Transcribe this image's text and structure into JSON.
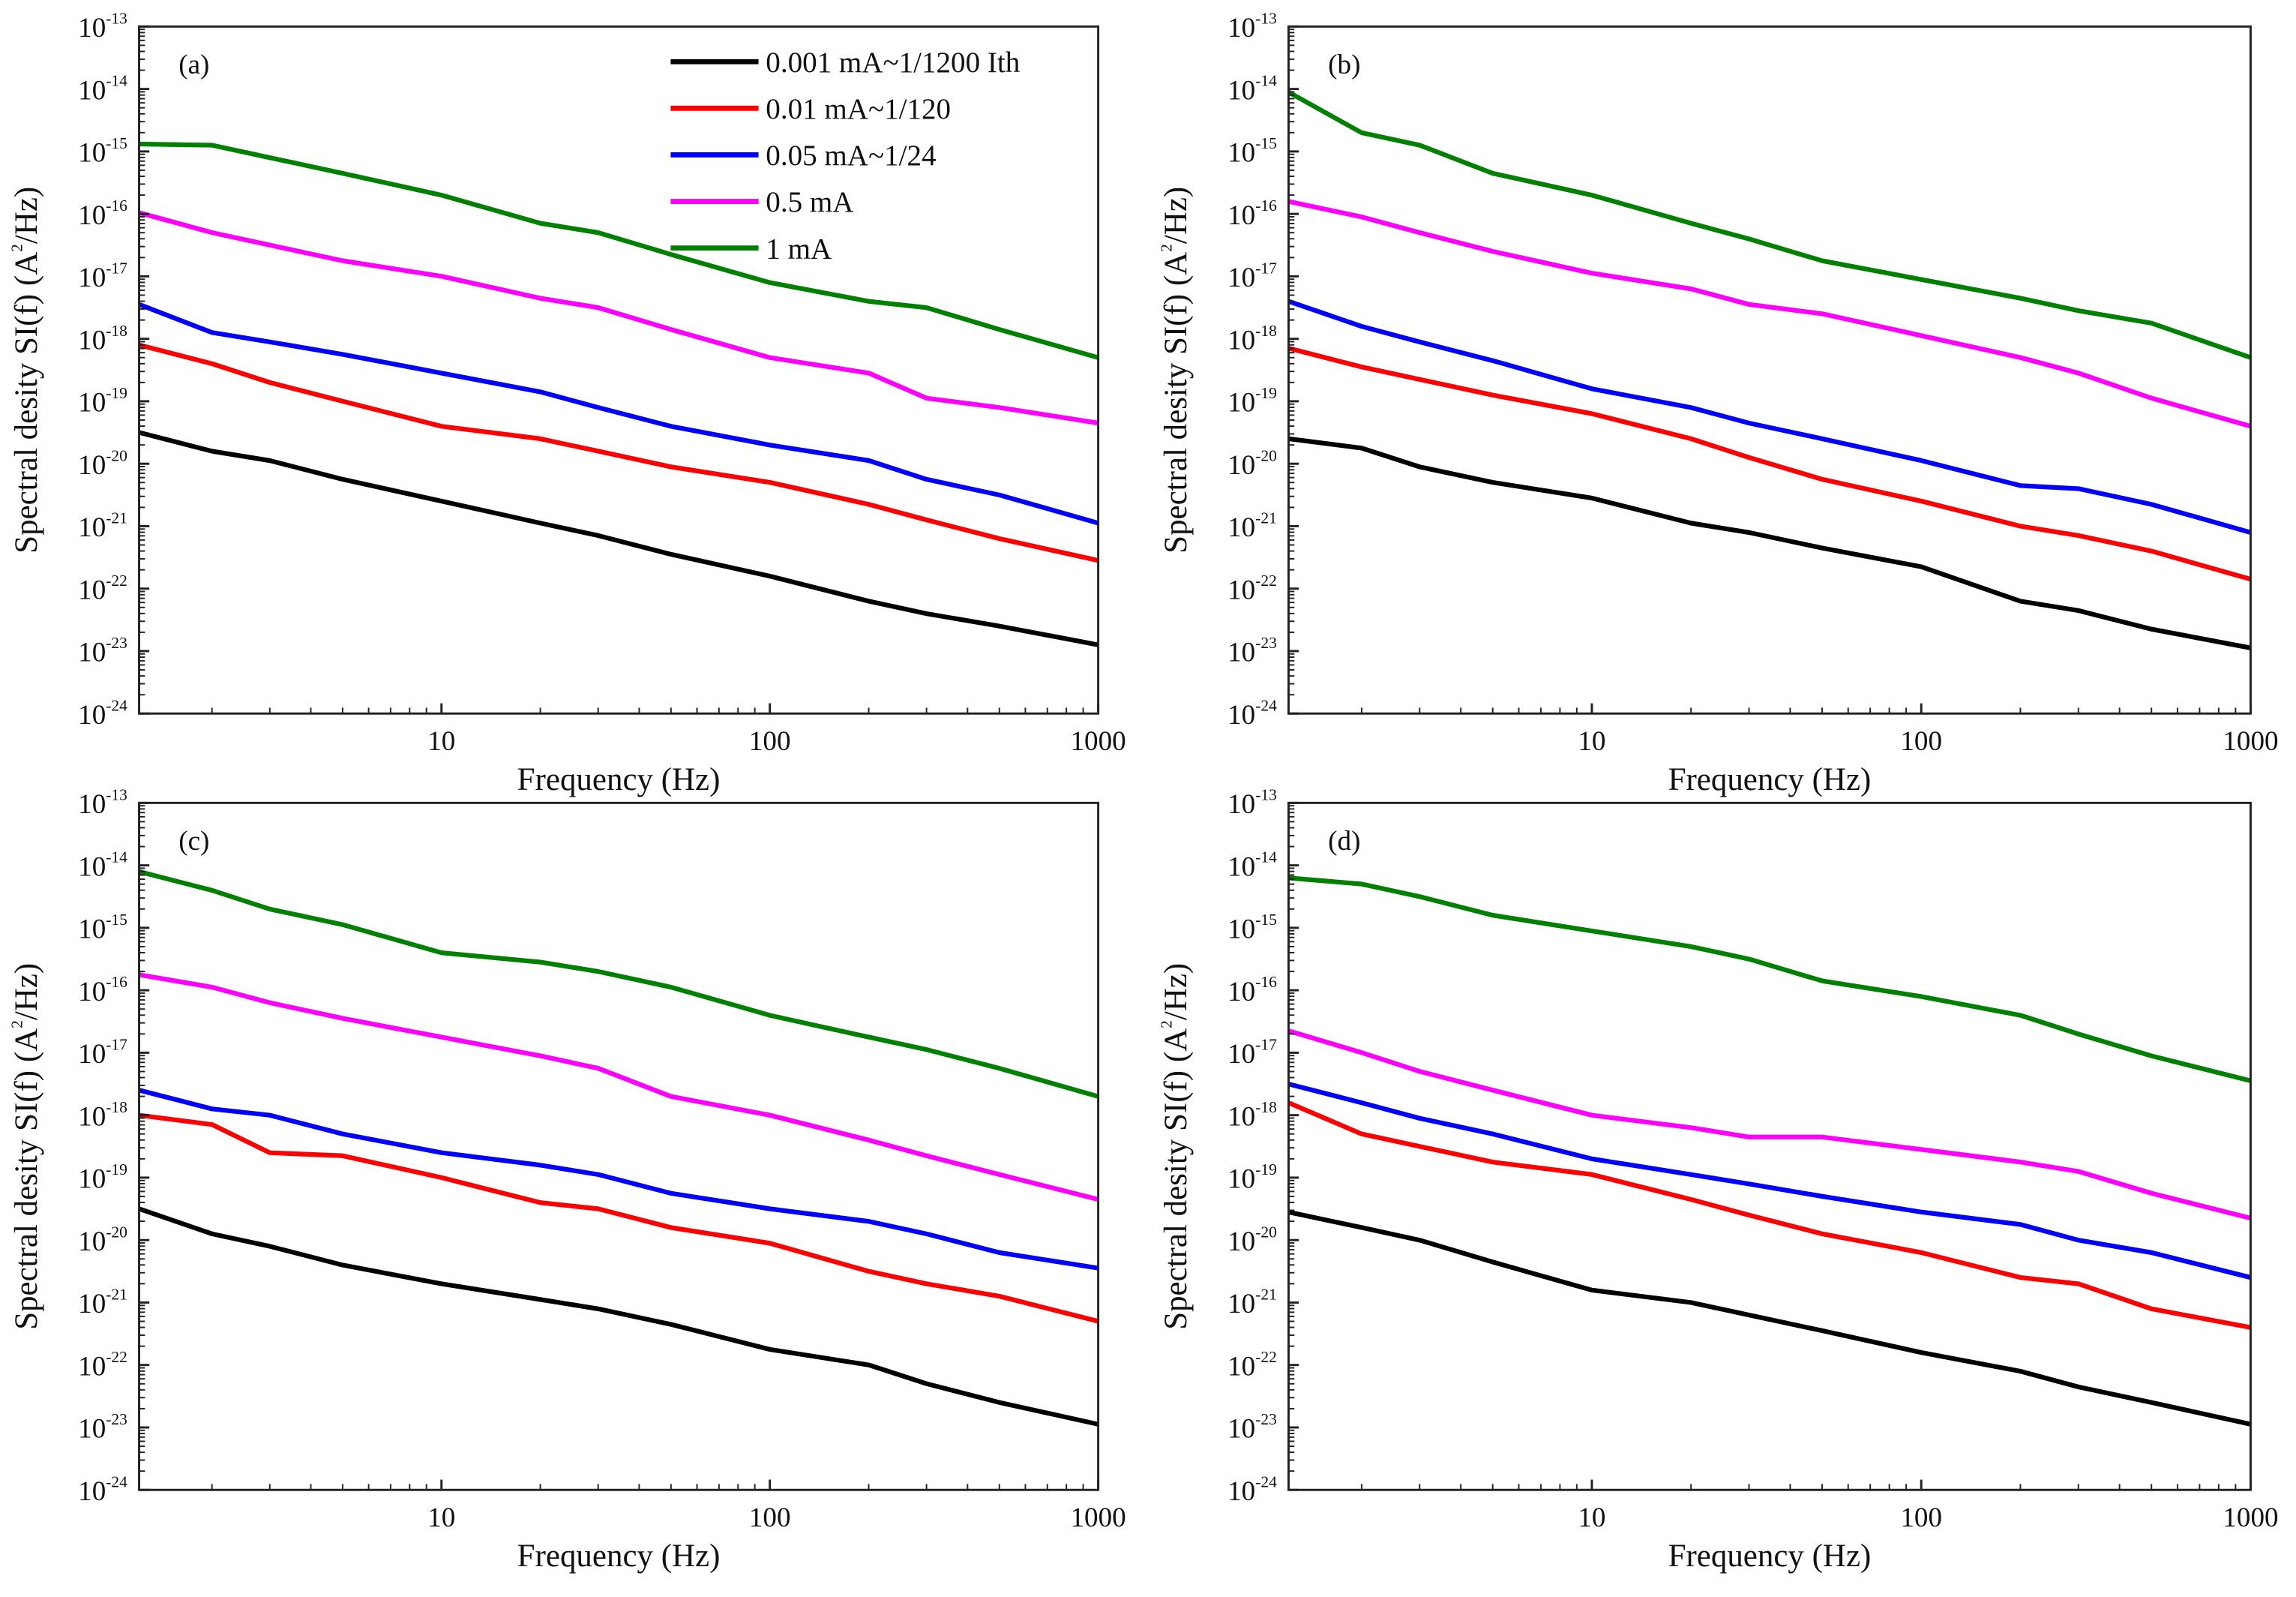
{
  "chart_data": {
    "type": "line",
    "layout": "2x2 grid of log-log panels",
    "legend": {
      "placement": "top-right of panel (a)",
      "entries": [
        {
          "label": "0.001 mA~1/1200 Ith",
          "color": "#000000"
        },
        {
          "label": "0.01 mA~1/120",
          "color": "#ff0000"
        },
        {
          "label": "0.05 mA~1/24",
          "color": "#0000ff"
        },
        {
          "label": "0.5 mA",
          "color": "#ff00ff"
        },
        {
          "label": "1 mA",
          "color": "#008000"
        }
      ]
    },
    "xlabel": "Frequency (Hz)",
    "ylabel_main": "Spectral desity SI(f) (A",
    "ylabel_sup": "2",
    "ylabel_tail": "/Hz)",
    "xscale": "log",
    "yscale": "log",
    "xlim": [
      1.2,
      1000
    ],
    "ylim_log10": [
      -24,
      -13
    ],
    "x_ticks": [
      "10",
      "100",
      "1000"
    ],
    "x_tick_values": [
      10,
      100,
      1000
    ],
    "y_tick_base": "10",
    "y_tick_exponents": [
      "-13",
      "-14",
      "-15",
      "-16",
      "-17",
      "-18",
      "-19",
      "-20",
      "-21",
      "-22",
      "-23",
      "-24"
    ],
    "y_note": "series y values are given as log10(SI) in A^2/Hz",
    "x": [
      1.2,
      2,
      3,
      5,
      10,
      20,
      30,
      50,
      100,
      200,
      300,
      500,
      1000
    ],
    "panels": [
      {
        "label": "(a)",
        "series": [
          {
            "name": "0.001 mA~1/1200 Ith",
            "y_log10": [
              -19.5,
              -19.8,
              -19.95,
              -20.25,
              -20.6,
              -20.95,
              -21.15,
              -21.45,
              -21.8,
              -22.2,
              -22.4,
              -22.6,
              -22.9
            ]
          },
          {
            "name": "0.01 mA~1/120",
            "y_log10": [
              -18.1,
              -18.4,
              -18.7,
              -19.0,
              -19.4,
              -19.6,
              -19.8,
              -20.05,
              -20.3,
              -20.65,
              -20.9,
              -21.2,
              -21.55
            ]
          },
          {
            "name": "0.05 mA~1/24",
            "y_log10": [
              -17.45,
              -17.9,
              -18.05,
              -18.25,
              -18.55,
              -18.85,
              -19.1,
              -19.4,
              -19.7,
              -19.95,
              -20.25,
              -20.5,
              -20.95
            ]
          },
          {
            "name": "0.5 mA",
            "y_log10": [
              -15.98,
              -16.3,
              -16.5,
              -16.75,
              -17.0,
              -17.35,
              -17.5,
              -17.85,
              -18.3,
              -18.55,
              -18.95,
              -19.1,
              -19.35
            ]
          },
          {
            "name": "1 mA",
            "y_log10": [
              -14.88,
              -14.9,
              -15.1,
              -15.35,
              -15.7,
              -16.15,
              -16.3,
              -16.65,
              -17.1,
              -17.4,
              -17.5,
              -17.85,
              -18.3
            ]
          }
        ]
      },
      {
        "label": "(b)",
        "series": [
          {
            "name": "0.001 mA~1/1200 Ith",
            "y_log10": [
              -19.6,
              -19.75,
              -20.05,
              -20.3,
              -20.55,
              -20.95,
              -21.1,
              -21.35,
              -21.65,
              -22.2,
              -22.35,
              -22.65,
              -22.95
            ]
          },
          {
            "name": "0.01 mA~1/120",
            "y_log10": [
              -18.15,
              -18.45,
              -18.65,
              -18.9,
              -19.2,
              -19.6,
              -19.9,
              -20.25,
              -20.6,
              -21.0,
              -21.15,
              -21.4,
              -21.85
            ]
          },
          {
            "name": "0.05 mA~1/24",
            "y_log10": [
              -17.4,
              -17.8,
              -18.05,
              -18.35,
              -18.8,
              -19.1,
              -19.35,
              -19.6,
              -19.95,
              -20.35,
              -20.4,
              -20.65,
              -21.1
            ]
          },
          {
            "name": "0.5 mA",
            "y_log10": [
              -15.8,
              -16.05,
              -16.3,
              -16.6,
              -16.95,
              -17.2,
              -17.45,
              -17.6,
              -17.95,
              -18.3,
              -18.55,
              -18.95,
              -19.4
            ]
          },
          {
            "name": "1 mA",
            "y_log10": [
              -14.05,
              -14.7,
              -14.9,
              -15.35,
              -15.7,
              -16.15,
              -16.4,
              -16.75,
              -17.05,
              -17.35,
              -17.55,
              -17.75,
              -18.3
            ]
          }
        ]
      },
      {
        "label": "(c)",
        "series": [
          {
            "name": "0.001 mA~1/1200 Ith",
            "y_log10": [
              -19.5,
              -19.9,
              -20.1,
              -20.4,
              -20.7,
              -20.95,
              -21.1,
              -21.35,
              -21.75,
              -22.0,
              -22.3,
              -22.6,
              -22.95
            ]
          },
          {
            "name": "0.01 mA~1/120",
            "y_log10": [
              -18.0,
              -18.15,
              -18.6,
              -18.65,
              -19.0,
              -19.4,
              -19.5,
              -19.8,
              -20.05,
              -20.5,
              -20.7,
              -20.9,
              -21.3
            ]
          },
          {
            "name": "0.05 mA~1/24",
            "y_log10": [
              -17.6,
              -17.9,
              -18.0,
              -18.3,
              -18.6,
              -18.8,
              -18.95,
              -19.25,
              -19.5,
              -19.7,
              -19.9,
              -20.2,
              -20.45
            ]
          },
          {
            "name": "0.5 mA",
            "y_log10": [
              -15.75,
              -15.95,
              -16.2,
              -16.45,
              -16.75,
              -17.05,
              -17.25,
              -17.7,
              -18.0,
              -18.4,
              -18.65,
              -18.95,
              -19.35
            ]
          },
          {
            "name": "1 mA",
            "y_log10": [
              -14.1,
              -14.4,
              -14.7,
              -14.95,
              -15.4,
              -15.55,
              -15.7,
              -15.95,
              -16.4,
              -16.75,
              -16.95,
              -17.25,
              -17.7
            ]
          }
        ]
      },
      {
        "label": "(d)",
        "series": [
          {
            "name": "0.001 mA~1/1200 Ith",
            "y_log10": [
              -19.55,
              -19.8,
              -20.0,
              -20.35,
              -20.8,
              -21.0,
              -21.2,
              -21.45,
              -21.8,
              -22.1,
              -22.35,
              -22.6,
              -22.95
            ]
          },
          {
            "name": "0.01 mA~1/120",
            "y_log10": [
              -17.8,
              -18.3,
              -18.5,
              -18.75,
              -18.95,
              -19.35,
              -19.6,
              -19.9,
              -20.2,
              -20.6,
              -20.7,
              -21.1,
              -21.4
            ]
          },
          {
            "name": "0.05 mA~1/24",
            "y_log10": [
              -17.5,
              -17.8,
              -18.05,
              -18.3,
              -18.7,
              -18.95,
              -19.1,
              -19.3,
              -19.55,
              -19.75,
              -20.0,
              -20.2,
              -20.6
            ]
          },
          {
            "name": "0.5 mA",
            "y_log10": [
              -16.65,
              -17.0,
              -17.3,
              -17.6,
              -18.0,
              -18.2,
              -18.35,
              -18.35,
              -18.55,
              -18.75,
              -18.9,
              -19.25,
              -19.65
            ]
          },
          {
            "name": "1 mA",
            "y_log10": [
              -14.2,
              -14.3,
              -14.5,
              -14.8,
              -15.05,
              -15.3,
              -15.5,
              -15.85,
              -16.1,
              -16.4,
              -16.7,
              -17.05,
              -17.45
            ]
          }
        ]
      }
    ]
  }
}
